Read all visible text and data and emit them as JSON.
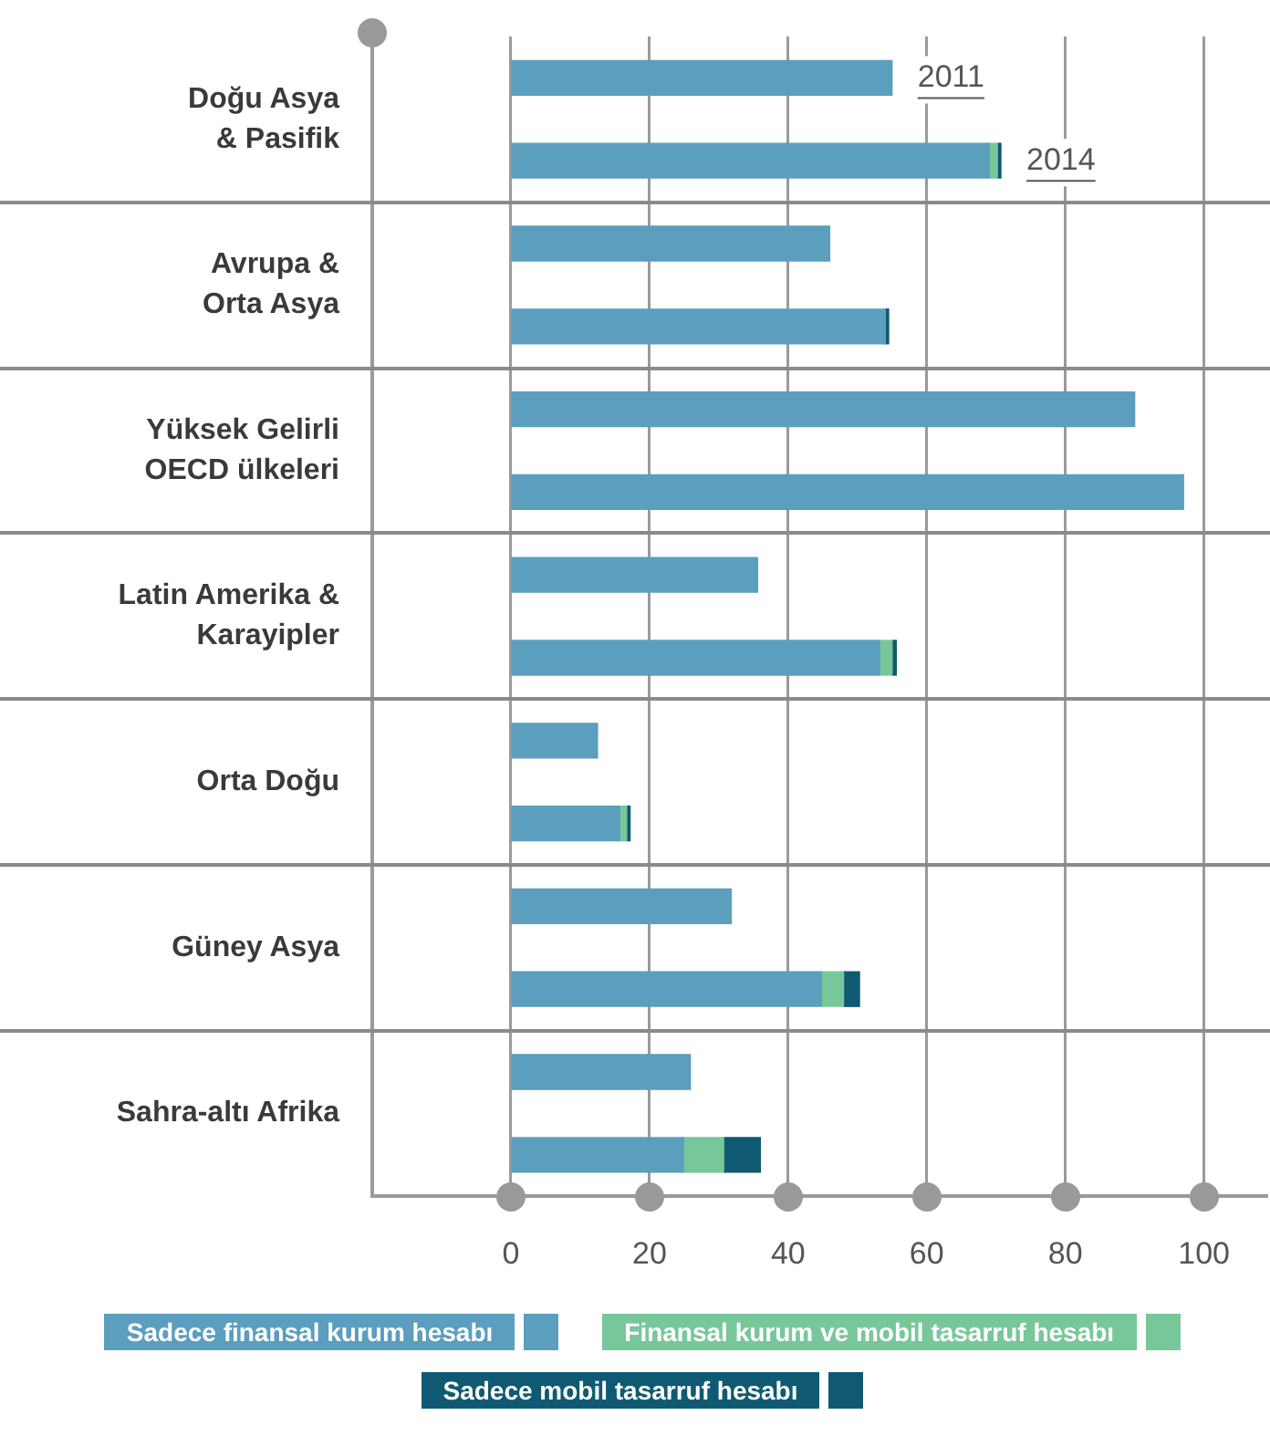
{
  "chart_data": {
    "type": "bar",
    "orientation": "horizontal",
    "stacked": true,
    "categories": [
      "Doğu Asya\n& Pasifik",
      null,
      "Avrupa &\nOrta Asya",
      null,
      "Yüksek Gelirli\nOECD ülkeleri",
      null,
      "Latin Amerika &\nKarayipler",
      null,
      "Orta Doğu",
      null,
      "Güney Asya",
      null,
      "Sahra-altı Afrika",
      null
    ],
    "series": [
      {
        "name": "Sadece finansal kurum hesabı",
        "color": "#5b9ebd",
        "values": [
          55,
          69,
          46,
          54,
          90,
          97,
          35.6,
          53.2,
          12.5,
          15.7,
          31.8,
          44.8,
          25.9,
          24.9
        ]
      },
      {
        "name": "Finansal kurum ve mobil tasarruf hesabı",
        "color": "#78c79a",
        "values": [
          null,
          1.2,
          null,
          0,
          null,
          0,
          null,
          1.8,
          null,
          1,
          null,
          3.2,
          null,
          5.8
        ]
      },
      {
        "name": "Sadece mobil tasarruf hesabı",
        "color": "#0f5a72",
        "values": [
          null,
          0.5,
          null,
          0.5,
          null,
          0,
          null,
          0.6,
          null,
          0.5,
          null,
          2.3,
          null,
          5.3
        ]
      }
    ],
    "xlim": [
      -20,
      109
    ],
    "xticks": [
      0,
      20,
      40,
      60,
      80,
      100
    ],
    "grid": "x",
    "legend": "bottom",
    "annotations": [
      "2011",
      "2014"
    ]
  }
}
